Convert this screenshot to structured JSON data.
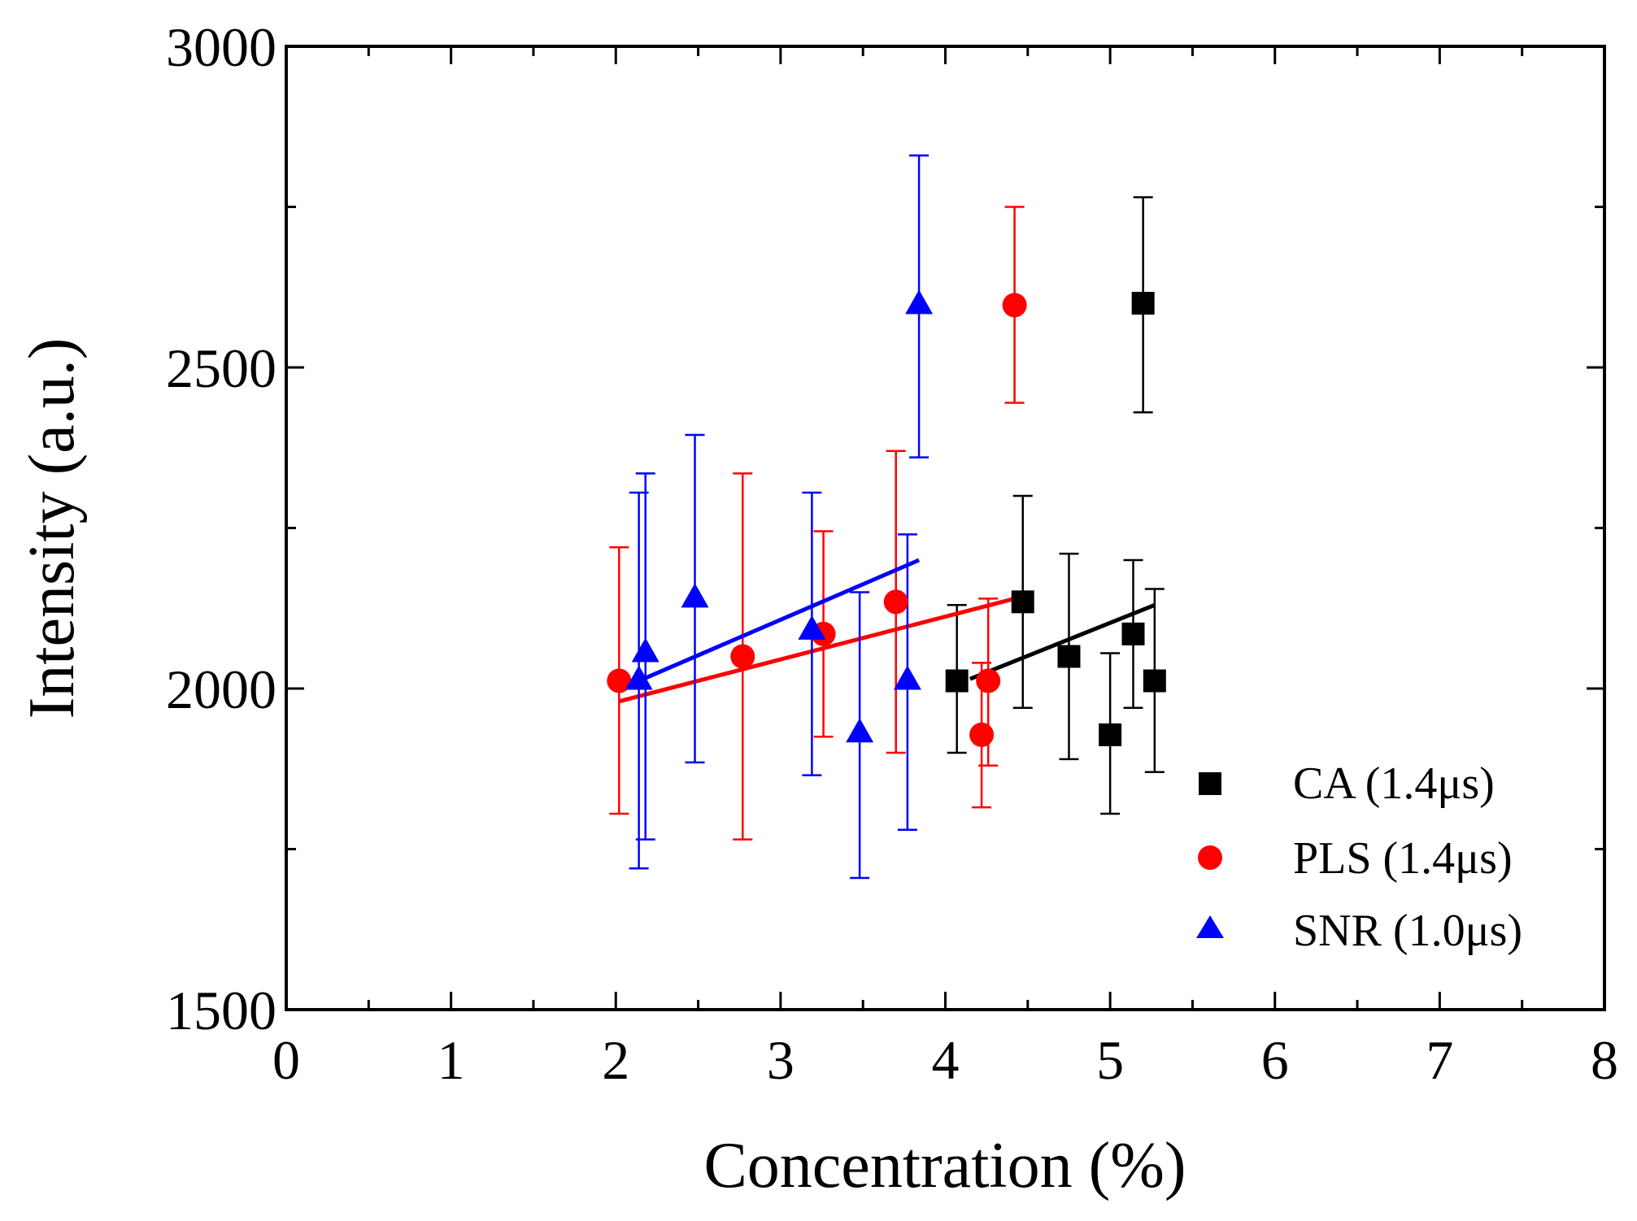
{
  "chart_data": {
    "type": "scatter",
    "title": "",
    "xlabel": "Concentration (%)",
    "ylabel": "Intensity (a.u.)",
    "xlim": [
      0,
      8
    ],
    "ylim": [
      1500,
      3000
    ],
    "x_ticks": [
      "0",
      "1",
      "2",
      "3",
      "4",
      "5",
      "6",
      "7",
      "8"
    ],
    "y_ticks": [
      "1500",
      "2000",
      "2500",
      "3000"
    ],
    "grid": false,
    "legend_position": "bottom-right",
    "series": [
      {
        "name": "CA (1.4μs)",
        "marker": "square",
        "color": "#000000",
        "points": [
          {
            "x": 4.07,
            "y": 2012,
            "err_low": 1900,
            "err_high": 2130
          },
          {
            "x": 4.47,
            "y": 2135,
            "err_low": 1970,
            "err_high": 2300
          },
          {
            "x": 4.75,
            "y": 2050,
            "err_low": 1890,
            "err_high": 2210
          },
          {
            "x": 5.0,
            "y": 1928,
            "err_low": 1805,
            "err_high": 2055
          },
          {
            "x": 5.14,
            "y": 2085,
            "err_low": 1970,
            "err_high": 2200
          },
          {
            "x": 5.2,
            "y": 2600,
            "err_low": 2430,
            "err_high": 2765
          },
          {
            "x": 5.27,
            "y": 2012,
            "err_low": 1870,
            "err_high": 2155
          }
        ],
        "fit": {
          "x": [
            4.15,
            5.27
          ],
          "y": [
            2015,
            2130
          ]
        }
      },
      {
        "name": "PLS (1.4μs)",
        "marker": "circle",
        "color": "#ff0000",
        "points": [
          {
            "x": 2.02,
            "y": 2012,
            "err_low": 1805,
            "err_high": 2220
          },
          {
            "x": 2.77,
            "y": 2050,
            "err_low": 1765,
            "err_high": 2335
          },
          {
            "x": 3.26,
            "y": 2085,
            "err_low": 1925,
            "err_high": 2245
          },
          {
            "x": 3.7,
            "y": 2135,
            "err_low": 1900,
            "err_high": 2370
          },
          {
            "x": 4.22,
            "y": 1928,
            "err_low": 1815,
            "err_high": 2040
          },
          {
            "x": 4.26,
            "y": 2012,
            "err_low": 1880,
            "err_high": 2140
          },
          {
            "x": 4.42,
            "y": 2597,
            "err_low": 2445,
            "err_high": 2750
          }
        ],
        "fit": {
          "x": [
            2.02,
            4.42
          ],
          "y": [
            1980,
            2140
          ]
        }
      },
      {
        "name": "SNR (1.0μs)",
        "marker": "triangle",
        "color": "#0000ff",
        "points": [
          {
            "x": 2.14,
            "y": 2012,
            "err_low": 1720,
            "err_high": 2305
          },
          {
            "x": 2.18,
            "y": 2055,
            "err_low": 1765,
            "err_high": 2335
          },
          {
            "x": 2.48,
            "y": 2140,
            "err_low": 1885,
            "err_high": 2395
          },
          {
            "x": 3.19,
            "y": 2090,
            "err_low": 1865,
            "err_high": 2305
          },
          {
            "x": 3.48,
            "y": 1930,
            "err_low": 1705,
            "err_high": 2150
          },
          {
            "x": 3.77,
            "y": 2012,
            "err_low": 1780,
            "err_high": 2240
          },
          {
            "x": 3.84,
            "y": 2597,
            "err_low": 2360,
            "err_high": 2830
          }
        ],
        "fit": {
          "x": [
            2.14,
            3.84
          ],
          "y": [
            2012,
            2200
          ]
        }
      }
    ]
  }
}
